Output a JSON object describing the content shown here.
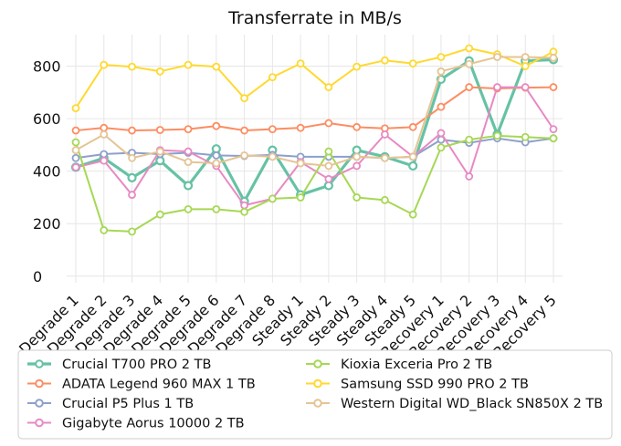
{
  "chart_data": {
    "type": "line",
    "title": "Transferrate in MB/s",
    "xlabel": "",
    "ylabel": "",
    "ylim": [
      -25,
      920
    ],
    "yticks": [
      0,
      200,
      400,
      600,
      800
    ],
    "grid": true,
    "legend_position": "bottom",
    "categories": [
      "Degrade 1",
      "Degrade 2",
      "Degrade 3",
      "Degrade 4",
      "Degrade 5",
      "Degrade 6",
      "Degrade 7",
      "Degrade 8",
      "Steady 1",
      "Steady 2",
      "Steady 3",
      "Steady 4",
      "Steady 5",
      "Recovery 1",
      "Recovery 2",
      "Recovery 3",
      "Recovery 4",
      "Recovery 5"
    ],
    "series": [
      {
        "name": "Crucial T700 PRO 2 TB",
        "color": "#66c2a5",
        "bold": true,
        "values": [
          415,
          450,
          375,
          440,
          345,
          485,
          285,
          480,
          310,
          345,
          480,
          455,
          420,
          750,
          820,
          540,
          820,
          825
        ]
      },
      {
        "name": "ADATA Legend 960 MAX 1 TB",
        "color": "#fc8d62",
        "values": [
          555,
          565,
          555,
          557,
          560,
          572,
          555,
          560,
          565,
          583,
          568,
          563,
          568,
          645,
          720,
          715,
          718,
          720
        ]
      },
      {
        "name": "Crucial P5 Plus 1 TB",
        "color": "#8da0cb",
        "values": [
          450,
          465,
          470,
          465,
          470,
          460,
          458,
          462,
          455,
          455,
          455,
          450,
          455,
          520,
          508,
          525,
          510,
          525
        ]
      },
      {
        "name": "Gigabyte Aorus 10000 2 TB",
        "color": "#e78ac3",
        "values": [
          415,
          440,
          310,
          480,
          475,
          420,
          270,
          295,
          435,
          370,
          420,
          540,
          455,
          545,
          380,
          720,
          720,
          560
        ]
      },
      {
        "name": "Kioxia Exceria Pro 2 TB",
        "color": "#a6d854",
        "values": [
          510,
          175,
          170,
          235,
          255,
          255,
          245,
          295,
          300,
          475,
          300,
          290,
          235,
          490,
          520,
          535,
          530,
          525
        ]
      },
      {
        "name": "Samsung SSD 990 PRO 2 TB",
        "color": "#ffd92f",
        "values": [
          640,
          805,
          798,
          780,
          805,
          798,
          678,
          758,
          810,
          720,
          798,
          822,
          810,
          835,
          868,
          845,
          800,
          855
        ]
      },
      {
        "name": "Western Digital WD_Black SN850X 2 TB",
        "color": "#e5c494",
        "values": [
          480,
          540,
          450,
          475,
          435,
          430,
          460,
          455,
          430,
          420,
          455,
          450,
          455,
          780,
          808,
          835,
          835,
          832
        ]
      }
    ]
  }
}
